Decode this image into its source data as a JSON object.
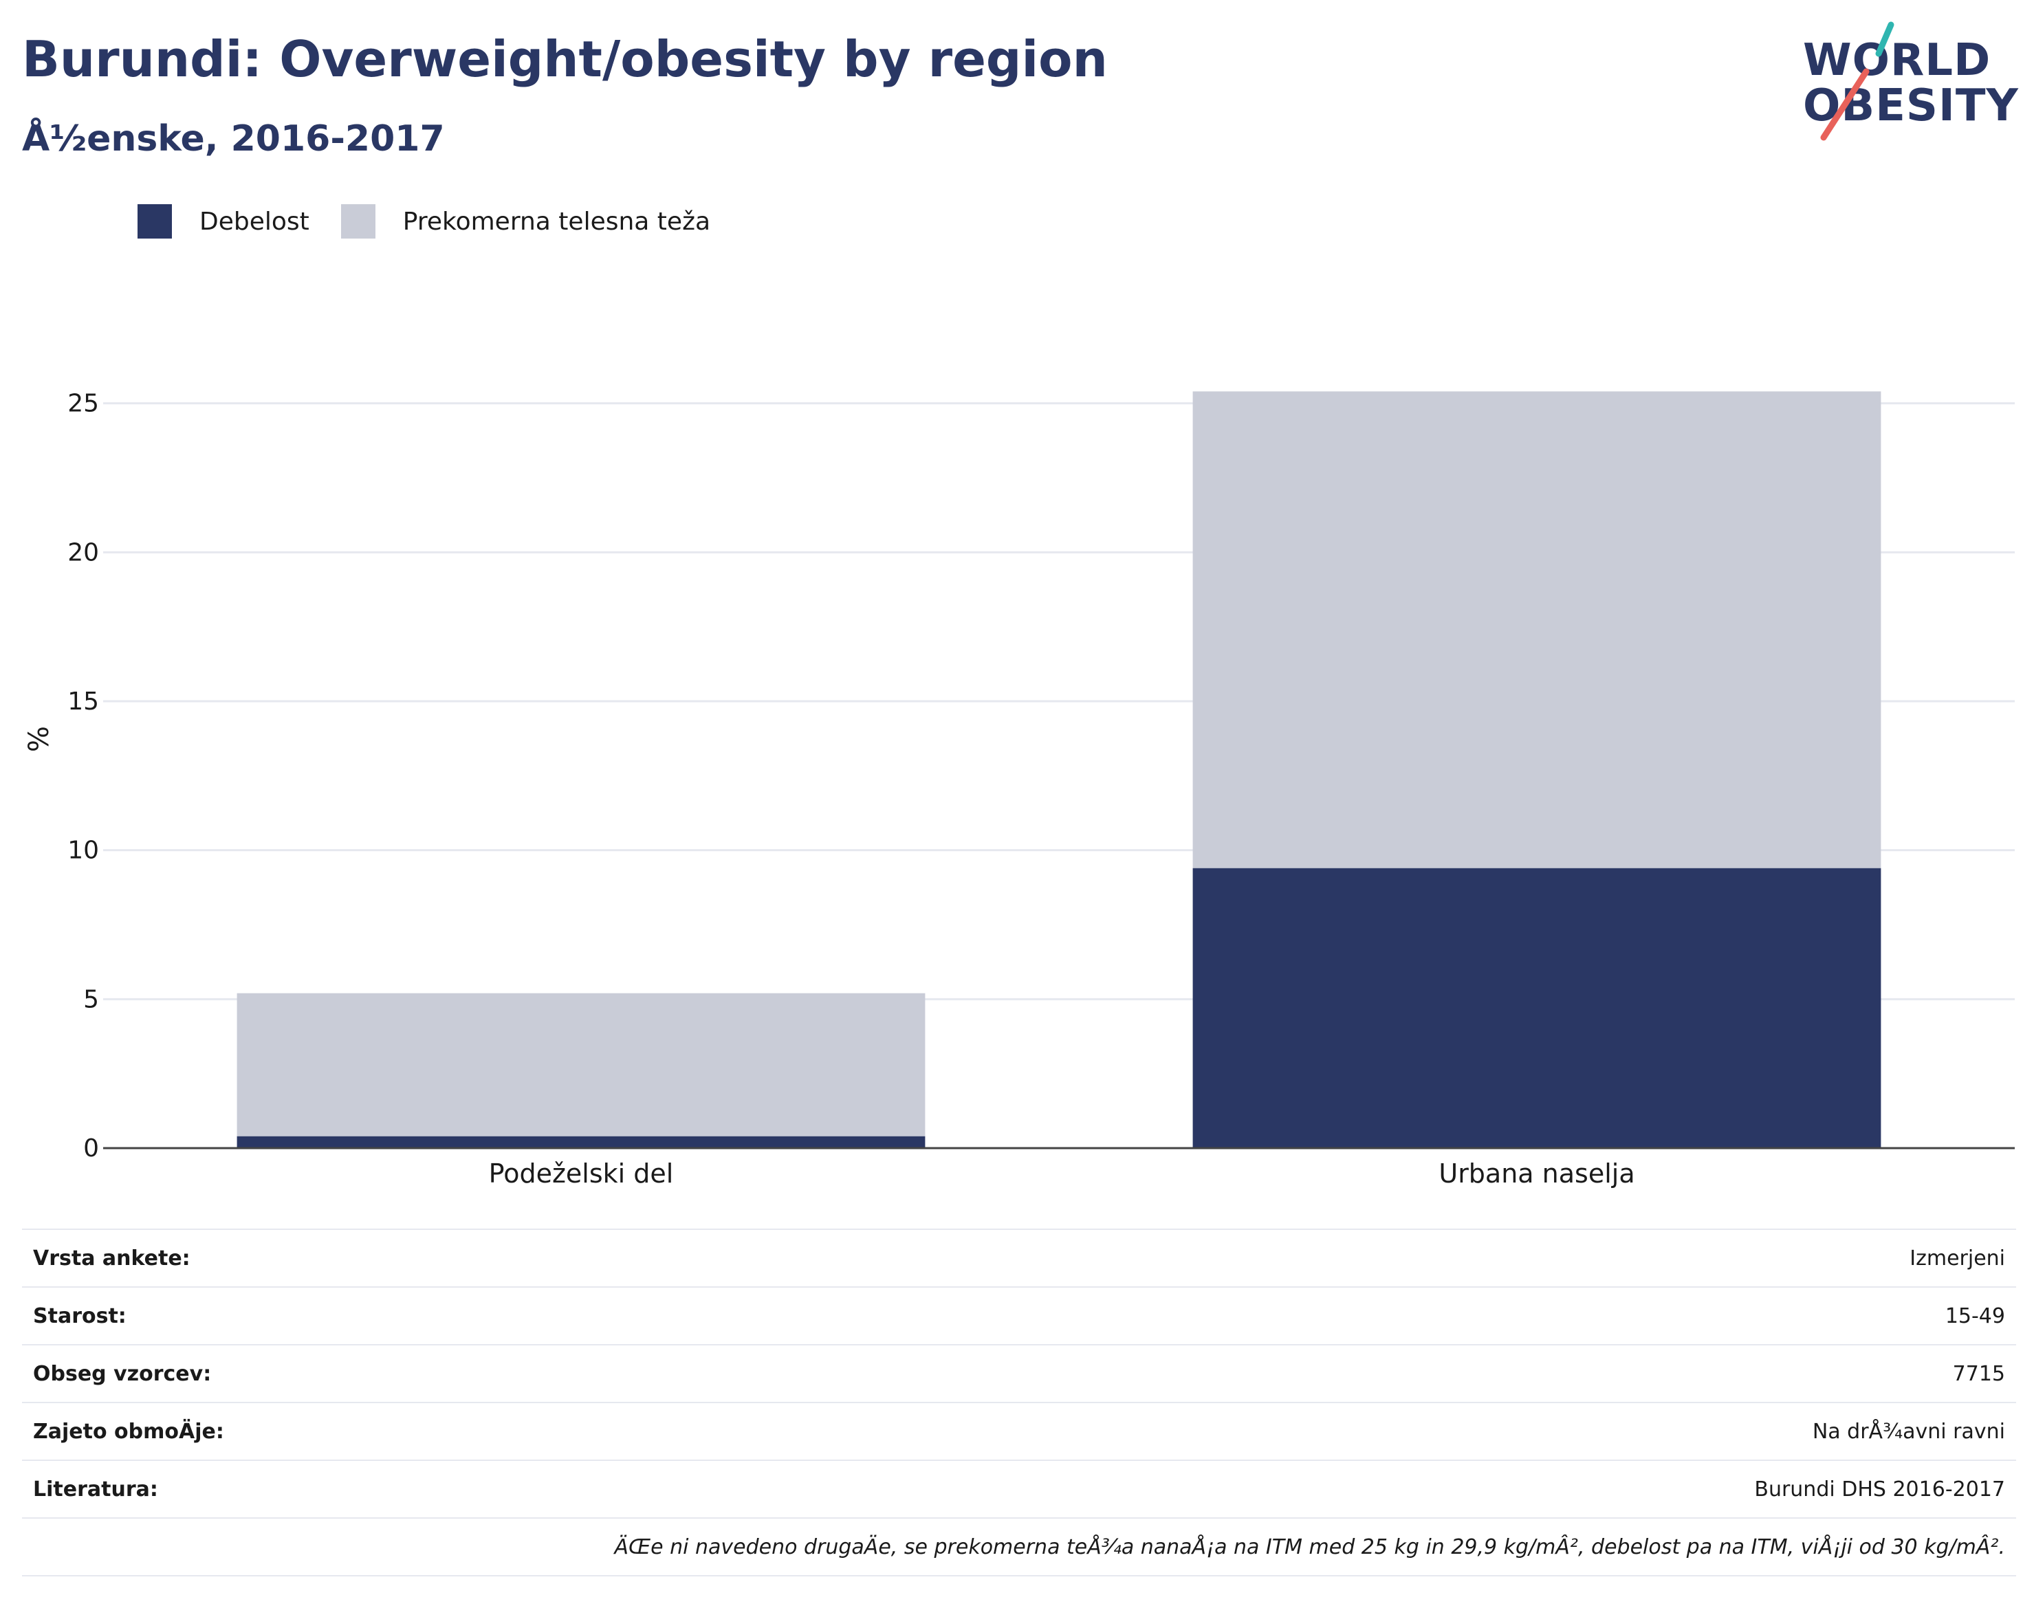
{
  "title": "Burundi: Overweight/obesity by region",
  "subtitle": "Å½enske, 2016-2017",
  "logo": {
    "line1": "WORLD",
    "line2": "OBESITY",
    "accent_teal": "#2fb5b0",
    "accent_red": "#e8615a"
  },
  "legend": [
    {
      "label": "Debelost",
      "color": "#2a3764"
    },
    {
      "label": "Prekomerna telesna teža",
      "color": "#c9ccd7"
    }
  ],
  "chart_data": {
    "type": "bar",
    "stacked": true,
    "categories": [
      "Podeželski del",
      "Urbana naselja"
    ],
    "series": [
      {
        "name": "Debelost",
        "values": [
          0.4,
          9.4
        ],
        "color": "#2a3764"
      },
      {
        "name": "Prekomerna telesna teža",
        "values": [
          4.8,
          16.0
        ],
        "color": "#c9ccd7"
      }
    ],
    "ylabel": "%",
    "xlabel": "",
    "ylim": [
      0,
      27
    ],
    "yticks": [
      0,
      5,
      10,
      15,
      20,
      25
    ],
    "grid": true,
    "legend_position": "top-left"
  },
  "info": [
    {
      "key": "Vrsta ankete:",
      "value": "Izmerjeni"
    },
    {
      "key": "Starost:",
      "value": "15-49"
    },
    {
      "key": "Obseg vzorcev:",
      "value": "7715"
    },
    {
      "key": "Zajeto obmoÄje:",
      "value": "Na drÅ¾avni ravni"
    },
    {
      "key": "Literatura:",
      "value": "Burundi DHS 2016-2017"
    }
  ],
  "note": "ÄŒe ni navedeno drugaÄe, se prekomerna teÅ¾a nanaÅ¡a na ITM med 25 kg in 29,9 kg/mÂ², debelost pa na ITM, viÅ¡ji od 30 kg/mÂ²."
}
